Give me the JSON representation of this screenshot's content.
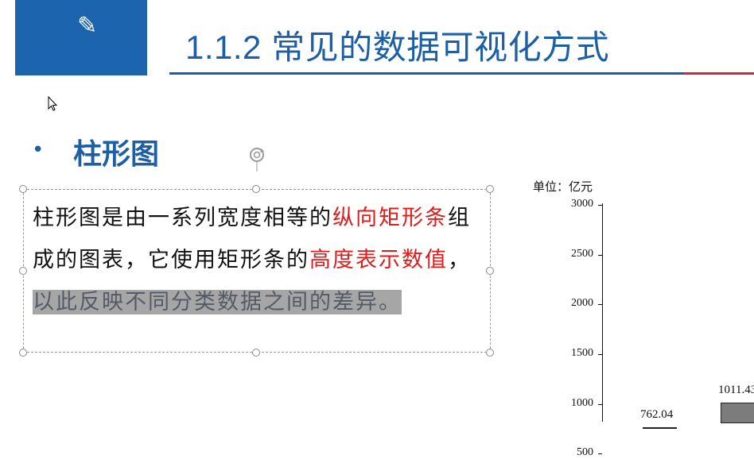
{
  "slide": {
    "icon": "pencil-icon",
    "title": "1.1.2 常见的数据可视化方式",
    "heading": "柱形图",
    "body_segments": [
      {
        "text": "柱形图是由一系列宽度相等的",
        "style": "normal"
      },
      {
        "text": "纵向矩形条",
        "style": "red"
      },
      {
        "text": "组成的图表，它使用矩形条的",
        "style": "normal"
      },
      {
        "text": "高度表示数值",
        "style": "red"
      },
      {
        "text": "，",
        "style": "normal"
      },
      {
        "text": "以此反映不同分类数据之间的差异。",
        "style": "selected"
      }
    ]
  },
  "colors": {
    "accent": "#1c5fa6",
    "highlight_red": "#e01b1b",
    "selection_gray": "#a6a6a6"
  },
  "chart_data": {
    "type": "bar",
    "unit_label": "单位：亿元",
    "yticks": [
      3000,
      2500,
      2000,
      1500,
      1000,
      500
    ],
    "ylim": [
      0,
      3000
    ],
    "values": [
      762.04,
      1011.43
    ]
  }
}
